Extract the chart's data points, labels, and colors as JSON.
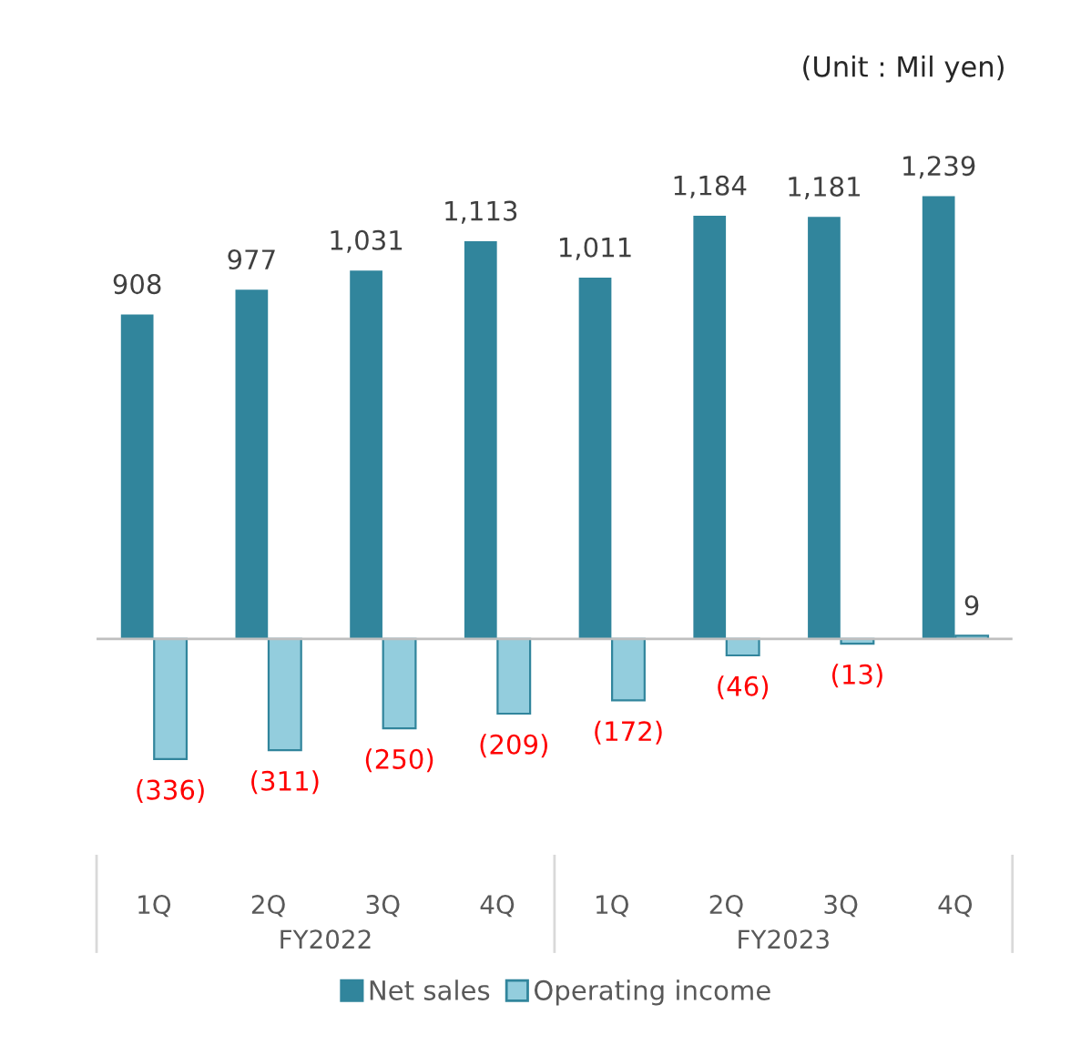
{
  "chart_data": {
    "type": "bar",
    "categories": [
      "1Q",
      "2Q",
      "3Q",
      "4Q",
      "1Q",
      "2Q",
      "3Q",
      "4Q"
    ],
    "series": [
      {
        "name": "Net sales",
        "color": "#31859c",
        "values": [
          908,
          977,
          1031,
          1113,
          1011,
          1184,
          1181,
          1239
        ],
        "value_labels": [
          "908",
          "977",
          "1,031",
          "1,113",
          "1,011",
          "1,184",
          "1,181",
          "1,239"
        ]
      },
      {
        "name": "Operating income",
        "color": "#93cddd",
        "values": [
          -336,
          -311,
          -250,
          -209,
          -172,
          -46,
          -13,
          9
        ],
        "value_labels": [
          "(336)",
          "(311)",
          "(250)",
          "(209)",
          "(172)",
          "(46)",
          "(13)",
          "9"
        ]
      }
    ],
    "annotations": [
      "FY2022",
      "FY2023",
      "(Unit : Mil yen)"
    ],
    "legend": "bottom",
    "grid": false
  }
}
